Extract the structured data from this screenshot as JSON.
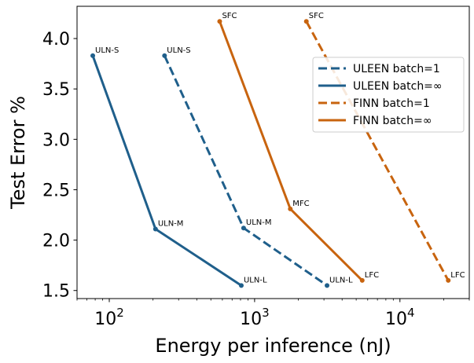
{
  "chart_data": {
    "type": "line",
    "xscale": "log",
    "xlim": [
      60,
      30000
    ],
    "ylim": [
      1.42,
      4.32
    ],
    "xlabel": "Energy per inference (nJ)",
    "ylabel": "Test Error %",
    "x_ticks": [
      {
        "value": 100,
        "base": "10",
        "exp": "2"
      },
      {
        "value": 1000,
        "base": "10",
        "exp": "3"
      },
      {
        "value": 10000,
        "base": "10",
        "exp": "4"
      }
    ],
    "y_ticks": [
      {
        "value": 1.5,
        "label": "1.5"
      },
      {
        "value": 2.0,
        "label": "2.0"
      },
      {
        "value": 2.5,
        "label": "2.5"
      },
      {
        "value": 3.0,
        "label": "3.0"
      },
      {
        "value": 3.5,
        "label": "3.5"
      },
      {
        "value": 4.0,
        "label": "4.0"
      }
    ],
    "series": [
      {
        "name": "ULEEN batch=1",
        "color": "#1f5f8b",
        "dash": "dashed",
        "points": [
          {
            "x": 240,
            "y": 3.83,
            "label": "ULN-S"
          },
          {
            "x": 840,
            "y": 2.12,
            "label": "ULN-M"
          },
          {
            "x": 3150,
            "y": 1.55,
            "label": "ULN-L"
          }
        ]
      },
      {
        "name": "ULEEN batch=∞",
        "color": "#1f5f8b",
        "dash": "solid",
        "points": [
          {
            "x": 77,
            "y": 3.83,
            "label": "ULN-S"
          },
          {
            "x": 208,
            "y": 2.11,
            "label": "ULN-M"
          },
          {
            "x": 810,
            "y": 1.55,
            "label": "ULN-L"
          }
        ]
      },
      {
        "name": "FINN batch=1",
        "color": "#c8640f",
        "dash": "dashed",
        "points": [
          {
            "x": 2270,
            "y": 4.17,
            "label": "SFC"
          },
          {
            "x": 21500,
            "y": 1.6,
            "label": "LFC"
          }
        ]
      },
      {
        "name": "FINN batch=∞",
        "color": "#c8640f",
        "dash": "solid",
        "points": [
          {
            "x": 575,
            "y": 4.17,
            "label": "SFC"
          },
          {
            "x": 1760,
            "y": 2.31,
            "label": "MFC"
          },
          {
            "x": 5500,
            "y": 1.6,
            "label": "LFC"
          }
        ]
      }
    ],
    "legend_position": "upper right"
  }
}
